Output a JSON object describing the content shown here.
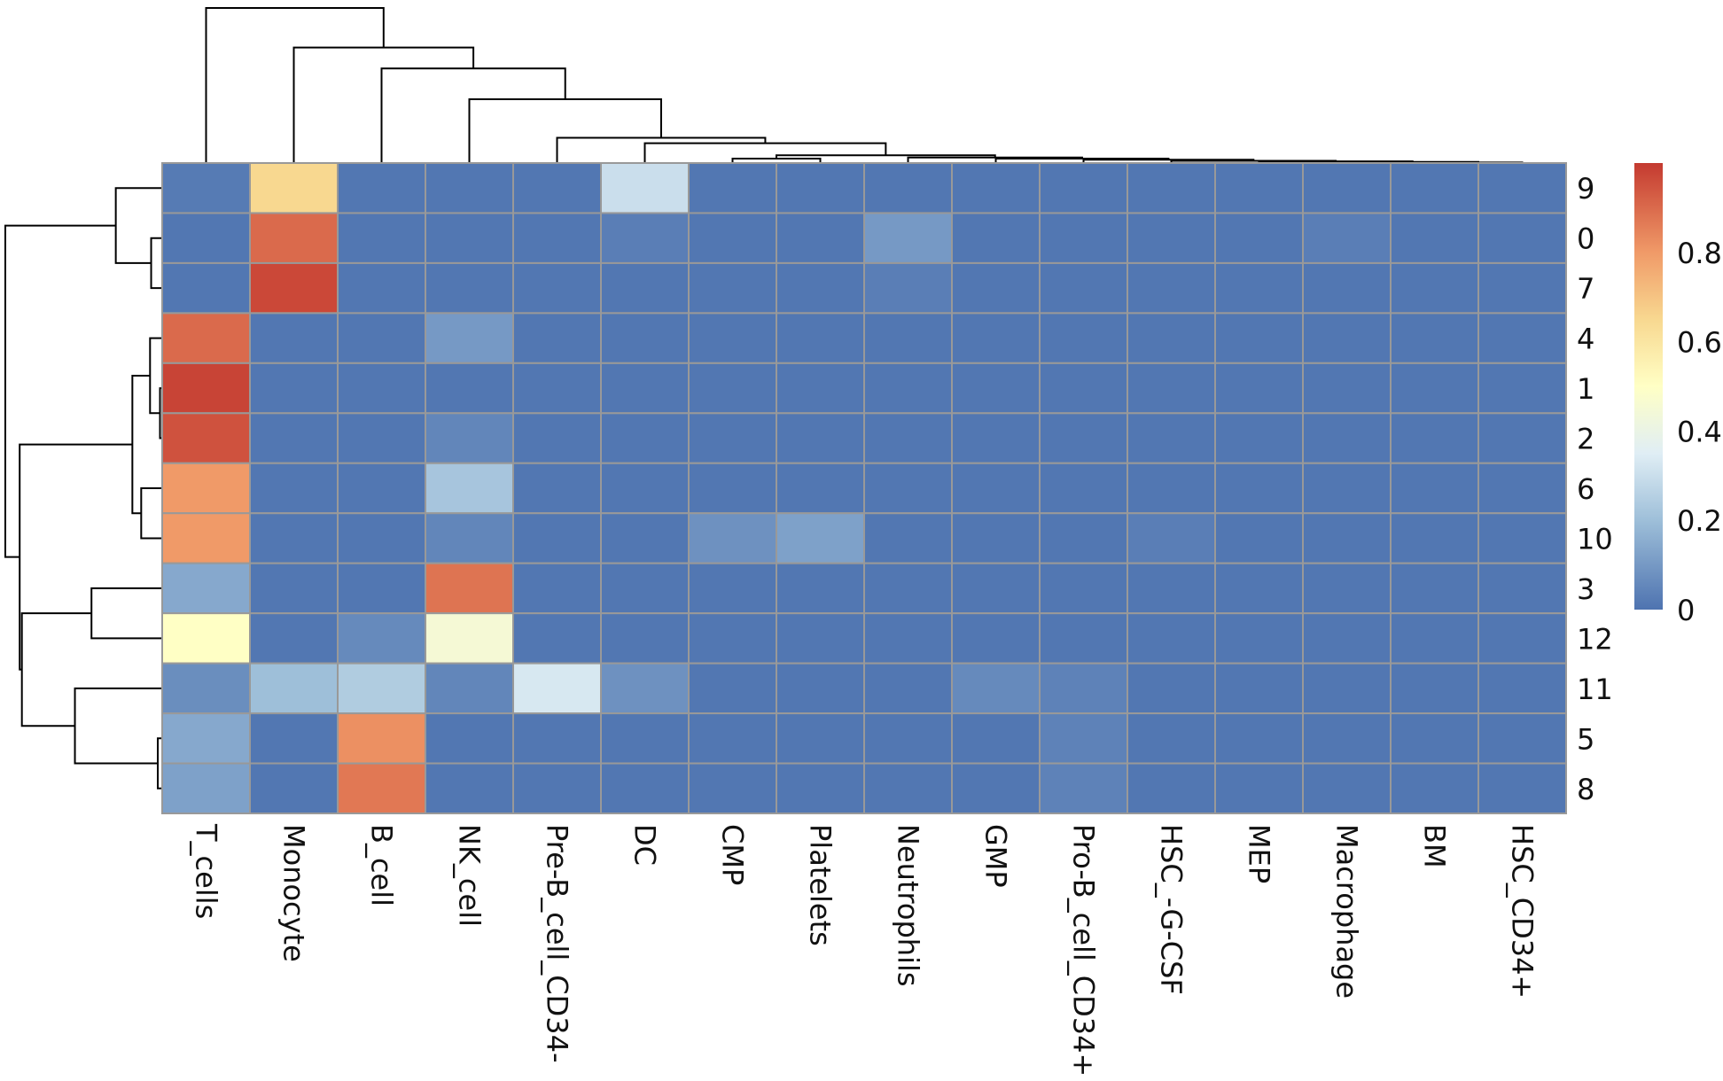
{
  "chart_data": {
    "type": "heatmap",
    "title": "",
    "columns": [
      "T_cells",
      "Monocyte",
      "B_cell",
      "NK_cell",
      "Pre-B_cell_CD34-",
      "DC",
      "CMP",
      "Platelets",
      "Neutrophils",
      "GMP",
      "Pro-B_cell_CD34+",
      "HSC_-G-CSF",
      "MEP",
      "Macrophage",
      "BM",
      "HSC_CD34+"
    ],
    "rows": [
      "9",
      "0",
      "7",
      "4",
      "1",
      "2",
      "6",
      "10",
      "3",
      "12",
      "11",
      "5",
      "8"
    ],
    "values": [
      [
        0.02,
        0.65,
        0.01,
        0.01,
        0.01,
        0.3,
        0.01,
        0.01,
        0.01,
        0.01,
        0.01,
        0.01,
        0.01,
        0.01,
        0.01,
        0.01
      ],
      [
        0.01,
        0.9,
        0.01,
        0.01,
        0.01,
        0.03,
        0.01,
        0.01,
        0.1,
        0.01,
        0.01,
        0.01,
        0.01,
        0.03,
        0.01,
        0.01
      ],
      [
        0.01,
        0.97,
        0.01,
        0.01,
        0.01,
        0.01,
        0.01,
        0.01,
        0.03,
        0.01,
        0.01,
        0.01,
        0.01,
        0.01,
        0.01,
        0.01
      ],
      [
        0.9,
        0.01,
        0.01,
        0.1,
        0.01,
        0.01,
        0.01,
        0.01,
        0.01,
        0.01,
        0.01,
        0.01,
        0.01,
        0.01,
        0.01,
        0.01
      ],
      [
        0.98,
        0.01,
        0.01,
        0.01,
        0.01,
        0.01,
        0.01,
        0.01,
        0.01,
        0.01,
        0.01,
        0.01,
        0.01,
        0.01,
        0.01,
        0.01
      ],
      [
        0.95,
        0.01,
        0.01,
        0.05,
        0.01,
        0.01,
        0.01,
        0.01,
        0.01,
        0.01,
        0.01,
        0.01,
        0.01,
        0.01,
        0.01,
        0.01
      ],
      [
        0.8,
        0.01,
        0.01,
        0.22,
        0.01,
        0.01,
        0.01,
        0.01,
        0.01,
        0.01,
        0.01,
        0.01,
        0.01,
        0.01,
        0.01,
        0.01
      ],
      [
        0.8,
        0.01,
        0.01,
        0.05,
        0.01,
        0.01,
        0.08,
        0.12,
        0.01,
        0.01,
        0.01,
        0.03,
        0.01,
        0.01,
        0.01,
        0.01
      ],
      [
        0.14,
        0.01,
        0.01,
        0.88,
        0.01,
        0.01,
        0.01,
        0.01,
        0.01,
        0.01,
        0.01,
        0.01,
        0.01,
        0.01,
        0.01,
        0.01
      ],
      [
        0.5,
        0.01,
        0.06,
        0.45,
        0.01,
        0.01,
        0.01,
        0.01,
        0.01,
        0.01,
        0.01,
        0.01,
        0.01,
        0.01,
        0.01,
        0.01
      ],
      [
        0.07,
        0.2,
        0.24,
        0.05,
        0.33,
        0.08,
        0.01,
        0.01,
        0.01,
        0.06,
        0.04,
        0.01,
        0.01,
        0.01,
        0.01,
        0.01
      ],
      [
        0.14,
        0.01,
        0.82,
        0.01,
        0.01,
        0.01,
        0.01,
        0.01,
        0.01,
        0.01,
        0.04,
        0.01,
        0.01,
        0.01,
        0.01,
        0.01
      ],
      [
        0.12,
        0.01,
        0.87,
        0.01,
        0.01,
        0.01,
        0.01,
        0.01,
        0.01,
        0.01,
        0.04,
        0.01,
        0.01,
        0.01,
        0.01,
        0.01
      ]
    ],
    "vmin": 0,
    "vmax": 1,
    "colormap": "RdYlBu_r",
    "colormap_stops": [
      [
        0,
        "#4e73b0"
      ],
      [
        0.2,
        "#9ebfd9"
      ],
      [
        0.35,
        "#e0eef5"
      ],
      [
        0.5,
        "#ffffc5"
      ],
      [
        0.65,
        "#f8d890"
      ],
      [
        0.8,
        "#f09a68"
      ],
      [
        1,
        "#c43a30"
      ]
    ],
    "cell_border_color": "#999999",
    "colorbar": {
      "ticks": [
        0,
        0.2,
        0.4,
        0.6,
        0.8
      ],
      "tick_labels": [
        "0",
        "0.2",
        "0.4",
        "0.6",
        "0.8"
      ],
      "placement": "right"
    },
    "column_dendrogram": {
      "h": 141,
      "l": 0,
      "r": {
        "h": 105,
        "l": 1,
        "r": {
          "h": 86,
          "l": 2,
          "r": {
            "h": 58,
            "l": 3,
            "r": {
              "h": 23,
              "l": 4,
              "r": {
                "h": 18,
                "l": 5,
                "r": {
                  "h": 7,
                  "l": {
                    "h": 4,
                    "l": 6,
                    "r": 7
                  },
                  "r": {
                    "h": 5,
                    "l": 8,
                    "r": {
                      "h": 4,
                      "l": 9,
                      "r": {
                        "h": 3,
                        "l": 10,
                        "r": {
                          "h": 2,
                          "l": 11,
                          "r": {
                            "h": 1.5,
                            "l": 12,
                            "r": {
                              "h": 1,
                              "l": 13,
                              "r": {
                                "h": 0.5,
                                "l": 14,
                                "r": 15
                              }
                            }
                          }
                        }
                      }
                    }
                  }
                }
              }
            }
          }
        }
      }
    },
    "row_dendrogram": {
      "h": 142,
      "l": {
        "h": 42,
        "l": 0,
        "r": {
          "h": 10,
          "l": 1,
          "r": 2
        }
      },
      "r": {
        "h": 129,
        "l": {
          "h": 27,
          "l": {
            "h": 11,
            "l": 3,
            "r": {
              "h": 2,
              "l": 4,
              "r": 5
            }
          },
          "r": {
            "h": 19,
            "l": 6,
            "r": 7
          }
        },
        "r": {
          "h": 127,
          "l": {
            "h": 64,
            "l": 8,
            "r": 9
          },
          "r": {
            "h": 79,
            "l": 10,
            "r": {
              "h": 4,
              "l": 11,
              "r": 12
            }
          }
        }
      }
    }
  }
}
